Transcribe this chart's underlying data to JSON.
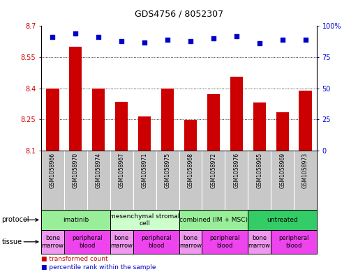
{
  "title": "GDS4756 / 8052307",
  "samples": [
    "GSM1058966",
    "GSM1058970",
    "GSM1058974",
    "GSM1058967",
    "GSM1058971",
    "GSM1058975",
    "GSM1058968",
    "GSM1058972",
    "GSM1058976",
    "GSM1058965",
    "GSM1058969",
    "GSM1058973"
  ],
  "bar_values": [
    8.4,
    8.6,
    8.4,
    8.335,
    8.265,
    8.4,
    8.248,
    8.373,
    8.455,
    8.333,
    8.285,
    8.388
  ],
  "dot_values": [
    91,
    94,
    91,
    88,
    87,
    89,
    88,
    90,
    92,
    86,
    89,
    89
  ],
  "ylim_left": [
    8.1,
    8.7
  ],
  "ylim_right": [
    0,
    100
  ],
  "yticks_left": [
    8.1,
    8.25,
    8.4,
    8.55,
    8.7
  ],
  "yticks_right": [
    0,
    25,
    50,
    75,
    100
  ],
  "ytick_labels_left": [
    "8.1",
    "8.25",
    "8.4",
    "8.55",
    "8.7"
  ],
  "ytick_labels_right": [
    "0",
    "25",
    "50",
    "75",
    "100%"
  ],
  "bar_color": "#cc0000",
  "dot_color": "#0000cc",
  "sample_bg_color": "#c8c8c8",
  "protocols": [
    {
      "label": "imatinib",
      "start": 0,
      "end": 3,
      "color": "#99ee99"
    },
    {
      "label": "mesenchymal stromal\ncell",
      "start": 3,
      "end": 6,
      "color": "#ccffcc"
    },
    {
      "label": "combined (IM + MSC)",
      "start": 6,
      "end": 9,
      "color": "#99ee99"
    },
    {
      "label": "untreated",
      "start": 9,
      "end": 12,
      "color": "#33cc66"
    }
  ],
  "tissues": [
    {
      "label": "bone\nmarrow",
      "start": 0,
      "end": 1,
      "color": "#ee99ee"
    },
    {
      "label": "peripheral\nblood",
      "start": 1,
      "end": 3,
      "color": "#ee44ee"
    },
    {
      "label": "bone\nmarrow",
      "start": 3,
      "end": 4,
      "color": "#ee99ee"
    },
    {
      "label": "peripheral\nblood",
      "start": 4,
      "end": 6,
      "color": "#ee44ee"
    },
    {
      "label": "bone\nmarrow",
      "start": 6,
      "end": 7,
      "color": "#ee99ee"
    },
    {
      "label": "peripheral\nblood",
      "start": 7,
      "end": 9,
      "color": "#ee44ee"
    },
    {
      "label": "bone\nmarrow",
      "start": 9,
      "end": 10,
      "color": "#ee99ee"
    },
    {
      "label": "peripheral\nblood",
      "start": 10,
      "end": 12,
      "color": "#ee44ee"
    }
  ]
}
